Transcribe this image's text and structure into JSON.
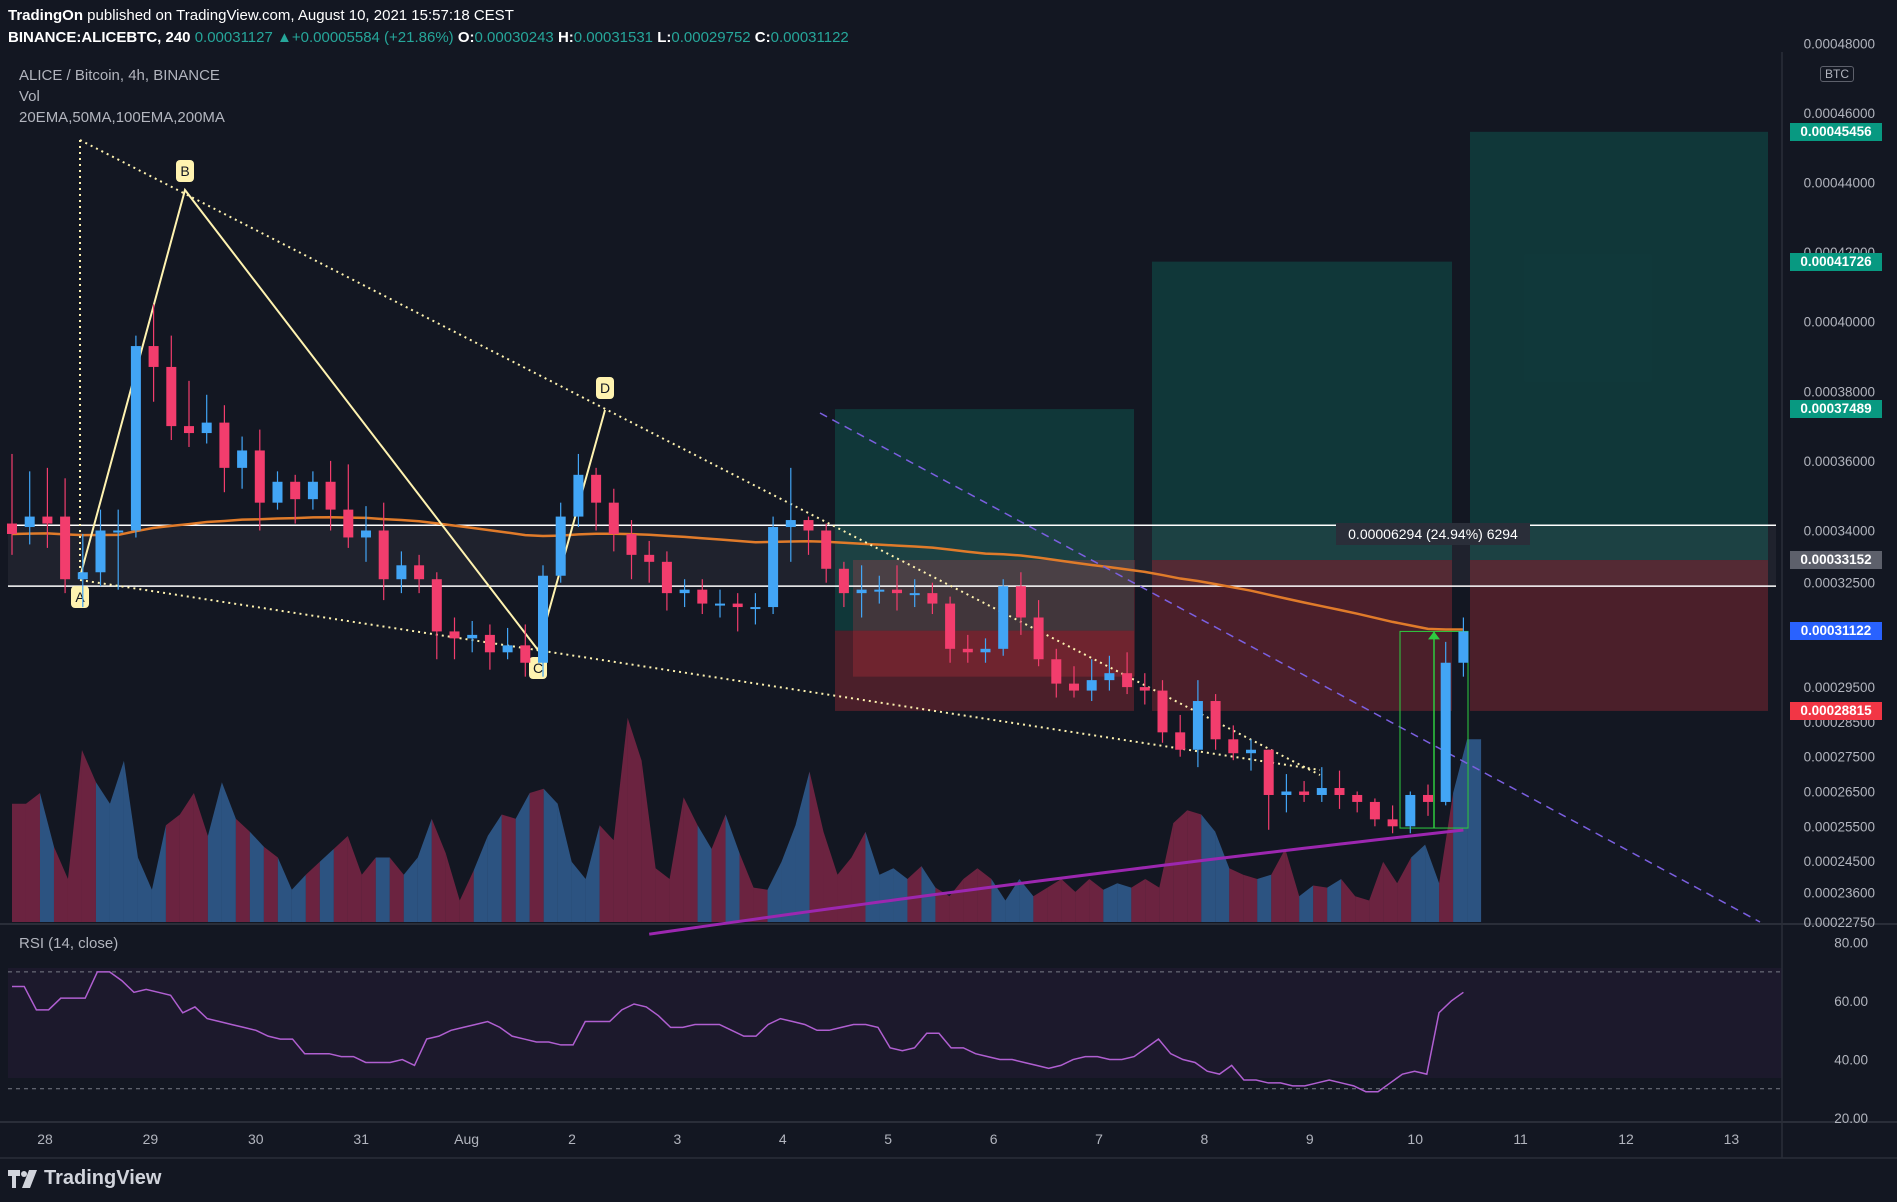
{
  "header": {
    "publisher": "TradingOn",
    "published_text": "published on TradingView.com, August 10, 2021 15:57:18 CEST",
    "symbol": "BINANCE:ALICEBTC, 240",
    "last": "0.00031127",
    "change": "+0.00005584 (+21.86%)",
    "o_label": "O:",
    "o": "0.00030243",
    "h_label": "H:",
    "h": "0.00031531",
    "l_label": "L:",
    "l": "0.00029752",
    "c_label": "C:",
    "c": "0.00031122"
  },
  "legend": {
    "title": "ALICE / Bitcoin, 4h, BINANCE",
    "vol": "Vol",
    "mas": "20EMA,50MA,100EMA,200MA"
  },
  "footer": {
    "brand": "TradingView"
  },
  "colors": {
    "background": "#131722",
    "bull": "#42a5f5",
    "bear": "#f23d6d",
    "ema100": "#e07b2a",
    "ma200": "#9c27b0",
    "rsi": "#b05fd1",
    "teal_tag": "#089981",
    "red_tag": "#f23645"
  },
  "chart_data": {
    "type": "candlestick",
    "title": "ALICE / Bitcoin, 4h, BINANCE",
    "y_unit": "BTC",
    "ylim": [
      0.0002275,
      0.0004775
    ],
    "x_ticks": [
      "28",
      "29",
      "30",
      "31",
      "Aug",
      "2",
      "3",
      "4",
      "5",
      "6",
      "7",
      "8",
      "9",
      "10",
      "11",
      "12",
      "13"
    ],
    "y_ticks": [
      "0.00048000",
      "0.00046000",
      "0.00044000",
      "0.00042000",
      "0.00040000",
      "0.00038000",
      "0.00036000",
      "0.00034000",
      "0.00032500",
      "0.00029500",
      "0.00028500",
      "0.00027500",
      "0.00026500",
      "0.00025500",
      "0.00024500",
      "0.00023600",
      "0.00022750"
    ],
    "price_tags": [
      {
        "label": "0.00045456",
        "value": 0.00045456,
        "color": "#089981"
      },
      {
        "label": "0.00041726",
        "value": 0.00041726,
        "color": "#089981"
      },
      {
        "label": "0.00037489",
        "value": 0.00037489,
        "color": "#089981"
      },
      {
        "label": "0.00033152",
        "value": 0.00033152,
        "color": "#5d606b"
      },
      {
        "label": "0.00031122",
        "value": 0.00031122,
        "color": "#2962ff"
      },
      {
        "label": "0.00028815",
        "value": 0.00028815,
        "color": "#f23645"
      }
    ],
    "candles": [
      [
        0.000342,
        0.000339,
        0.000362,
        0.000333
      ],
      [
        0.000341,
        0.000344,
        0.000357,
        0.000336
      ],
      [
        0.000344,
        0.000342,
        0.000358,
        0.000335
      ],
      [
        0.000344,
        0.000326,
        0.000355,
        0.000322
      ],
      [
        0.000326,
        0.000328,
        0.000339,
        0.000318
      ],
      [
        0.000328,
        0.00034,
        0.000346,
        0.000324
      ],
      [
        0.00034,
        0.00034,
        0.000346,
        0.000323
      ],
      [
        0.00034,
        0.000393,
        0.000396,
        0.000338
      ],
      [
        0.000393,
        0.000387,
        0.000405,
        0.000377
      ],
      [
        0.000387,
        0.00037,
        0.000396,
        0.000366
      ],
      [
        0.00037,
        0.000368,
        0.000383,
        0.000364
      ],
      [
        0.000368,
        0.000371,
        0.000379,
        0.000365
      ],
      [
        0.000371,
        0.000358,
        0.000376,
        0.000351
      ],
      [
        0.000358,
        0.000363,
        0.000367,
        0.000352
      ],
      [
        0.000363,
        0.000348,
        0.000369,
        0.00034
      ],
      [
        0.000348,
        0.000354,
        0.000357,
        0.000346
      ],
      [
        0.000354,
        0.000349,
        0.000356,
        0.000342
      ],
      [
        0.000349,
        0.000354,
        0.000357,
        0.000346
      ],
      [
        0.000354,
        0.000346,
        0.00036,
        0.00034
      ],
      [
        0.000346,
        0.000338,
        0.000359,
        0.000335
      ],
      [
        0.000338,
        0.00034,
        0.000347,
        0.000331
      ],
      [
        0.00034,
        0.000326,
        0.000348,
        0.00032
      ],
      [
        0.000326,
        0.00033,
        0.000334,
        0.000322
      ],
      [
        0.00033,
        0.000326,
        0.000333,
        0.000322
      ],
      [
        0.000326,
        0.000311,
        0.000328,
        0.000303
      ],
      [
        0.000311,
        0.000309,
        0.000315,
        0.000303
      ],
      [
        0.000309,
        0.00031,
        0.000314,
        0.000305
      ],
      [
        0.00031,
        0.000305,
        0.000313,
        0.0003
      ],
      [
        0.000305,
        0.000307,
        0.000312,
        0.000303
      ],
      [
        0.000307,
        0.000302,
        0.000313,
        0.000298
      ],
      [
        0.000302,
        0.000327,
        0.00033,
        0.000298
      ],
      [
        0.000327,
        0.000344,
        0.000348,
        0.000325
      ],
      [
        0.000344,
        0.000356,
        0.000362,
        0.000341
      ],
      [
        0.000356,
        0.000348,
        0.000358,
        0.00034
      ],
      [
        0.000348,
        0.000339,
        0.000352,
        0.000334
      ],
      [
        0.000339,
        0.000333,
        0.000343,
        0.000326
      ],
      [
        0.000333,
        0.000331,
        0.000337,
        0.000325
      ],
      [
        0.000331,
        0.000322,
        0.000334,
        0.000317
      ],
      [
        0.000322,
        0.000323,
        0.000326,
        0.000318
      ],
      [
        0.000323,
        0.000319,
        0.000326,
        0.000316
      ],
      [
        0.000319,
        0.000319,
        0.000323,
        0.000315
      ],
      [
        0.000319,
        0.000318,
        0.000322,
        0.000311
      ],
      [
        0.000318,
        0.000318,
        0.000322,
        0.000313
      ],
      [
        0.000318,
        0.000341,
        0.000344,
        0.000316
      ],
      [
        0.000341,
        0.000343,
        0.000358,
        0.000331
      ],
      [
        0.000343,
        0.00034,
        0.000344,
        0.000333
      ],
      [
        0.00034,
        0.000329,
        0.000342,
        0.000325
      ],
      [
        0.000329,
        0.000322,
        0.000331,
        0.000318
      ],
      [
        0.000322,
        0.000323,
        0.00033,
        0.000315
      ],
      [
        0.000323,
        0.000323,
        0.000327,
        0.000319
      ],
      [
        0.000323,
        0.000322,
        0.00033,
        0.000317
      ],
      [
        0.000322,
        0.000322,
        0.000326,
        0.000318
      ],
      [
        0.000322,
        0.000319,
        0.000325,
        0.000316
      ],
      [
        0.000319,
        0.000306,
        0.000321,
        0.000302
      ],
      [
        0.000306,
        0.000305,
        0.00031,
        0.000302
      ],
      [
        0.000305,
        0.000306,
        0.000309,
        0.000302
      ],
      [
        0.000306,
        0.000324,
        0.000326,
        0.000304
      ],
      [
        0.000324,
        0.000315,
        0.000328,
        0.00031
      ],
      [
        0.000315,
        0.000303,
        0.00032,
        0.000301
      ],
      [
        0.000303,
        0.000296,
        0.000306,
        0.000292
      ],
      [
        0.000296,
        0.000294,
        0.000301,
        0.000292
      ],
      [
        0.000294,
        0.000297,
        0.000303,
        0.000291
      ],
      [
        0.000297,
        0.000299,
        0.000304,
        0.000294
      ],
      [
        0.000299,
        0.000295,
        0.000305,
        0.000293
      ],
      [
        0.000295,
        0.000294,
        0.000299,
        0.00029
      ],
      [
        0.000294,
        0.000282,
        0.000297,
        0.000279
      ],
      [
        0.000282,
        0.000277,
        0.000287,
        0.000275
      ],
      [
        0.000277,
        0.000291,
        0.000297,
        0.000272
      ],
      [
        0.000291,
        0.00028,
        0.000293,
        0.000277
      ],
      [
        0.00028,
        0.000276,
        0.000284,
        0.000274
      ],
      [
        0.000276,
        0.000277,
        0.00028,
        0.000271
      ],
      [
        0.000277,
        0.000264,
        0.000277,
        0.000254
      ],
      [
        0.000264,
        0.000265,
        0.00027,
        0.000259
      ],
      [
        0.000265,
        0.000264,
        0.000268,
        0.000262
      ],
      [
        0.000264,
        0.000266,
        0.000272,
        0.000262
      ],
      [
        0.000266,
        0.000264,
        0.000271,
        0.00026
      ],
      [
        0.000264,
        0.000262,
        0.000265,
        0.000259
      ],
      [
        0.000262,
        0.000257,
        0.000263,
        0.000255
      ],
      [
        0.000257,
        0.000255,
        0.000261,
        0.000253
      ],
      [
        0.000255,
        0.000264,
        0.000265,
        0.000253
      ],
      [
        0.000264,
        0.000262,
        0.000267,
        0.000258
      ],
      [
        0.000262,
        0.000302,
        0.000308,
        0.000261
      ],
      [
        0.000302,
        0.000311,
        0.000315,
        0.000298
      ]
    ],
    "volume": [
      0.55,
      0.55,
      0.6,
      0.35,
      0.2,
      0.8,
      0.65,
      0.55,
      0.75,
      0.3,
      0.15,
      0.45,
      0.5,
      0.6,
      0.4,
      0.65,
      0.48,
      0.42,
      0.35,
      0.3,
      0.15,
      0.22,
      0.28,
      0.34,
      0.4,
      0.22,
      0.3,
      0.3,
      0.22,
      0.3,
      0.48,
      0.32,
      0.1,
      0.24,
      0.4,
      0.5,
      0.48,
      0.6,
      0.62,
      0.55,
      0.28,
      0.2,
      0.45,
      0.38,
      0.95,
      0.75,
      0.25,
      0.2,
      0.58,
      0.45,
      0.34,
      0.5,
      0.32,
      0.16,
      0.15,
      0.28,
      0.45,
      0.7,
      0.42,
      0.22,
      0.3,
      0.42,
      0.22,
      0.25,
      0.2,
      0.26,
      0.16,
      0.12,
      0.2,
      0.25,
      0.2,
      0.1,
      0.2,
      0.12,
      0.16,
      0.2,
      0.14,
      0.2,
      0.15,
      0.18,
      0.16,
      0.2,
      0.16,
      0.46,
      0.52,
      0.5,
      0.42,
      0.25,
      0.22,
      0.2,
      0.22,
      0.34,
      0.12,
      0.17,
      0.16,
      0.2,
      0.12,
      0.1,
      0.28,
      0.18,
      0.3,
      0.36,
      0.18,
      0.6,
      0.85
    ],
    "rsi": {
      "label": "RSI (14, close)",
      "ylim": [
        20,
        85
      ],
      "ticks": [
        "80.00",
        "60.00",
        "40.00",
        "20.00"
      ],
      "upper_band": 70,
      "lower_band": 30,
      "values": [
        65,
        65,
        57,
        57,
        61,
        61,
        61,
        70,
        70,
        67,
        63,
        64,
        63,
        62,
        56,
        58,
        54,
        53,
        52,
        51,
        50,
        48,
        47,
        47,
        42,
        42,
        42,
        41,
        41,
        39,
        39,
        39,
        40,
        38,
        47,
        48,
        50,
        51,
        52,
        53,
        51,
        48,
        47,
        46,
        46,
        45,
        45,
        53,
        53,
        53,
        57,
        59,
        58,
        55,
        51,
        51,
        52,
        52,
        52,
        50,
        48,
        48,
        52,
        54,
        53,
        52,
        50,
        50,
        51,
        52,
        52,
        51,
        44,
        43,
        44,
        49,
        49,
        44,
        44,
        42,
        41,
        40,
        40,
        39,
        38,
        37,
        38,
        40,
        41,
        41,
        40,
        40,
        41,
        44,
        47,
        42,
        40,
        39,
        36,
        35,
        38,
        33,
        33,
        32,
        32,
        31,
        31,
        32,
        33,
        32,
        31,
        29,
        29,
        32,
        35,
        36,
        35,
        56,
        60,
        63
      ]
    },
    "drawings": {
      "xabcd_labels": [
        "A",
        "B",
        "C",
        "D"
      ],
      "measure_label": "0.00006294 (24.94%) 6294"
    }
  }
}
